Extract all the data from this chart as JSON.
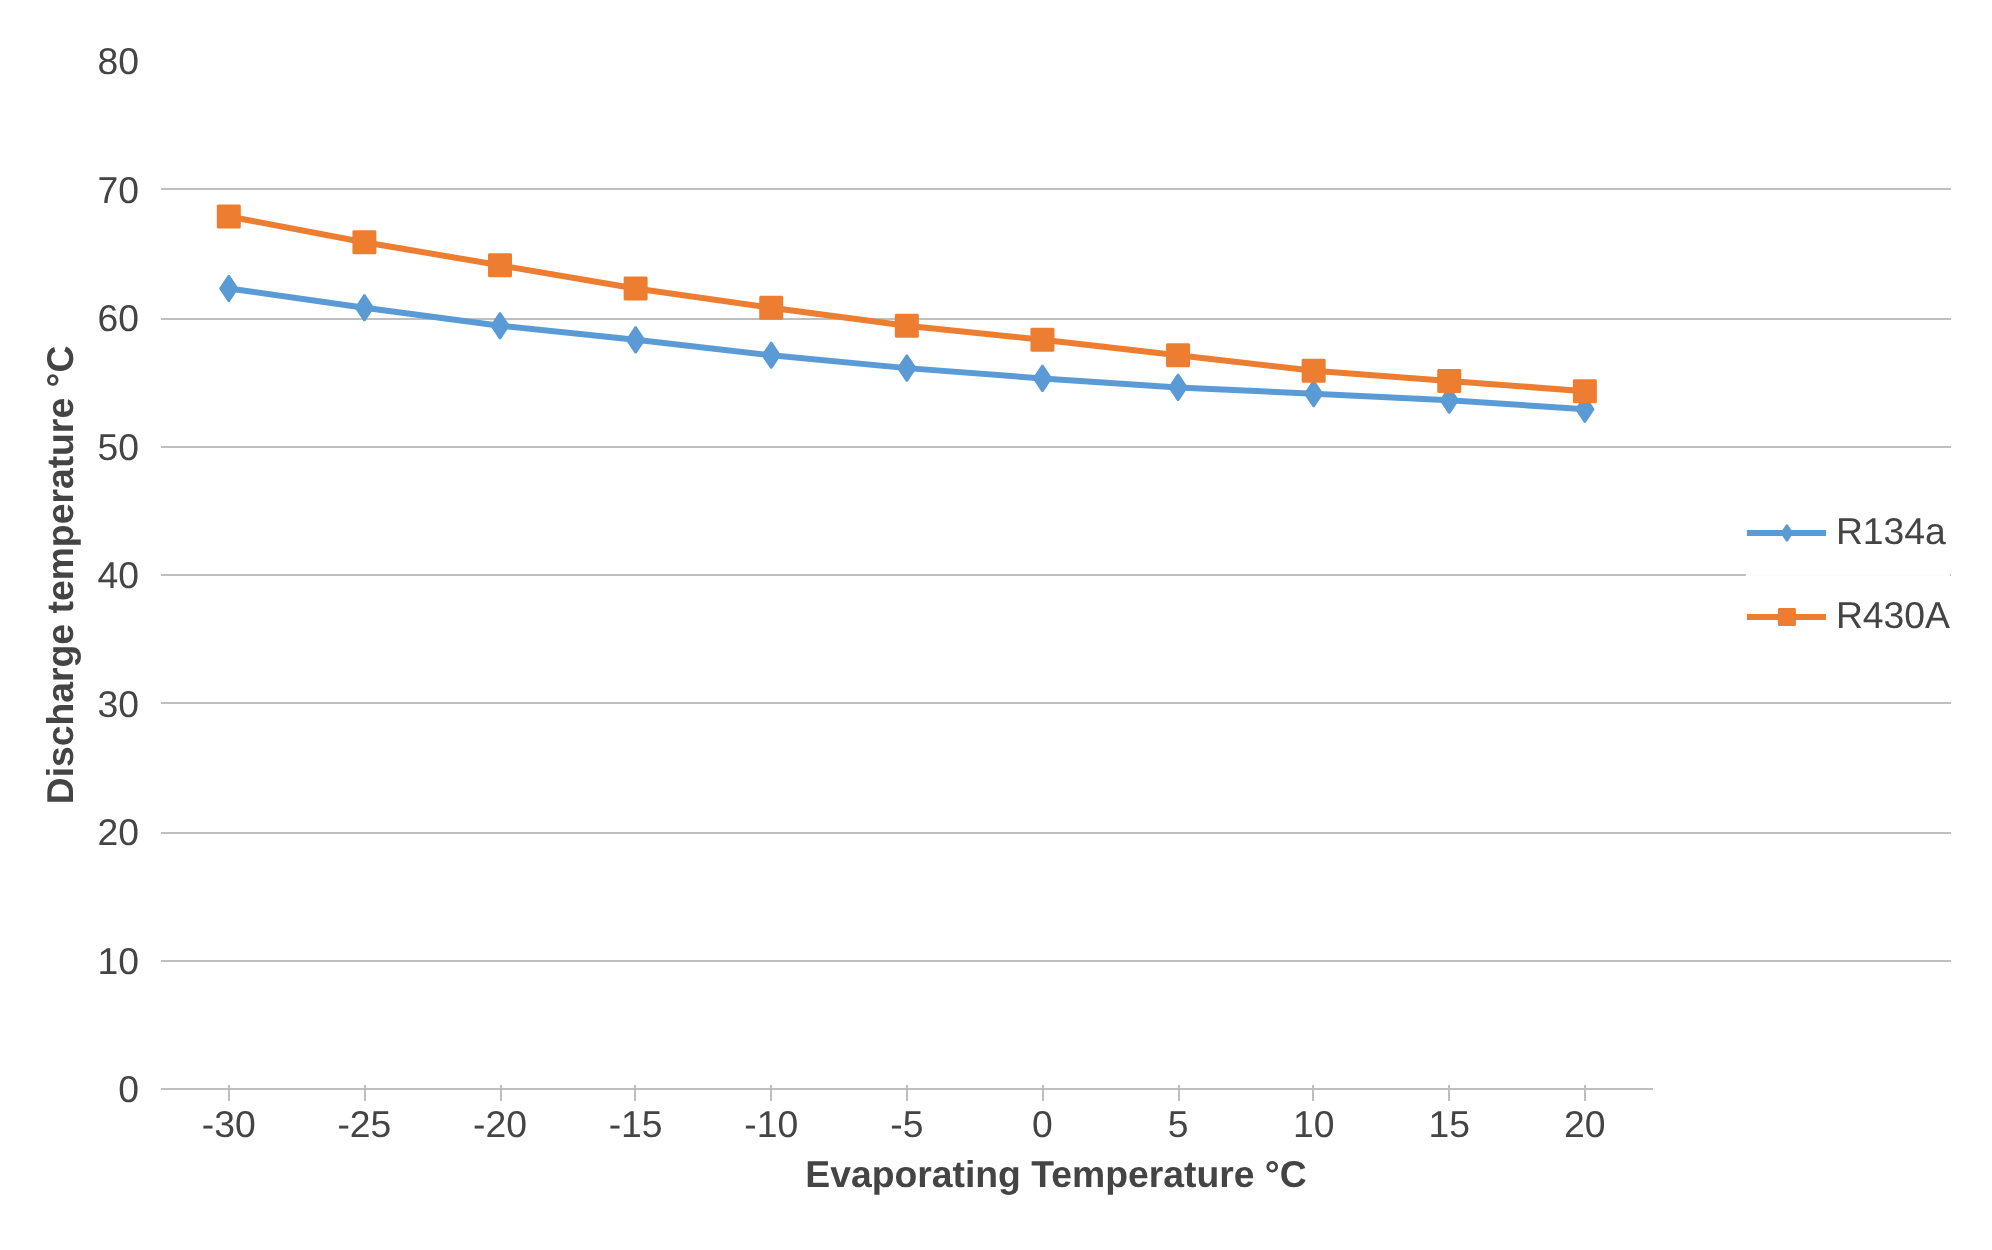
{
  "chart_data": {
    "type": "line",
    "xlabel": "Evaporating Temperature °C",
    "ylabel": "Discharge temperature °C",
    "categories": [
      "-30",
      "-25",
      "-20",
      "-15",
      "-10",
      "-5",
      "0",
      "5",
      "10",
      "15",
      "20"
    ],
    "series": [
      {
        "name": "R134a",
        "color": "#5b9bd5",
        "marker": "diamond",
        "values": [
          62.3,
          60.8,
          59.4,
          58.3,
          57.1,
          56.1,
          55.3,
          54.6,
          54.1,
          53.6,
          52.9
        ]
      },
      {
        "name": "R430A",
        "color": "#ed7d31",
        "marker": "square",
        "values": [
          67.9,
          65.9,
          64.1,
          62.3,
          60.8,
          59.4,
          58.3,
          57.1,
          55.9,
          55.1,
          54.3
        ]
      }
    ],
    "ylim": [
      0,
      80
    ],
    "yticks": [
      0,
      10,
      20,
      30,
      40,
      50,
      60,
      70,
      80
    ],
    "grid": "y",
    "legend": "right",
    "line_style": "solid"
  }
}
